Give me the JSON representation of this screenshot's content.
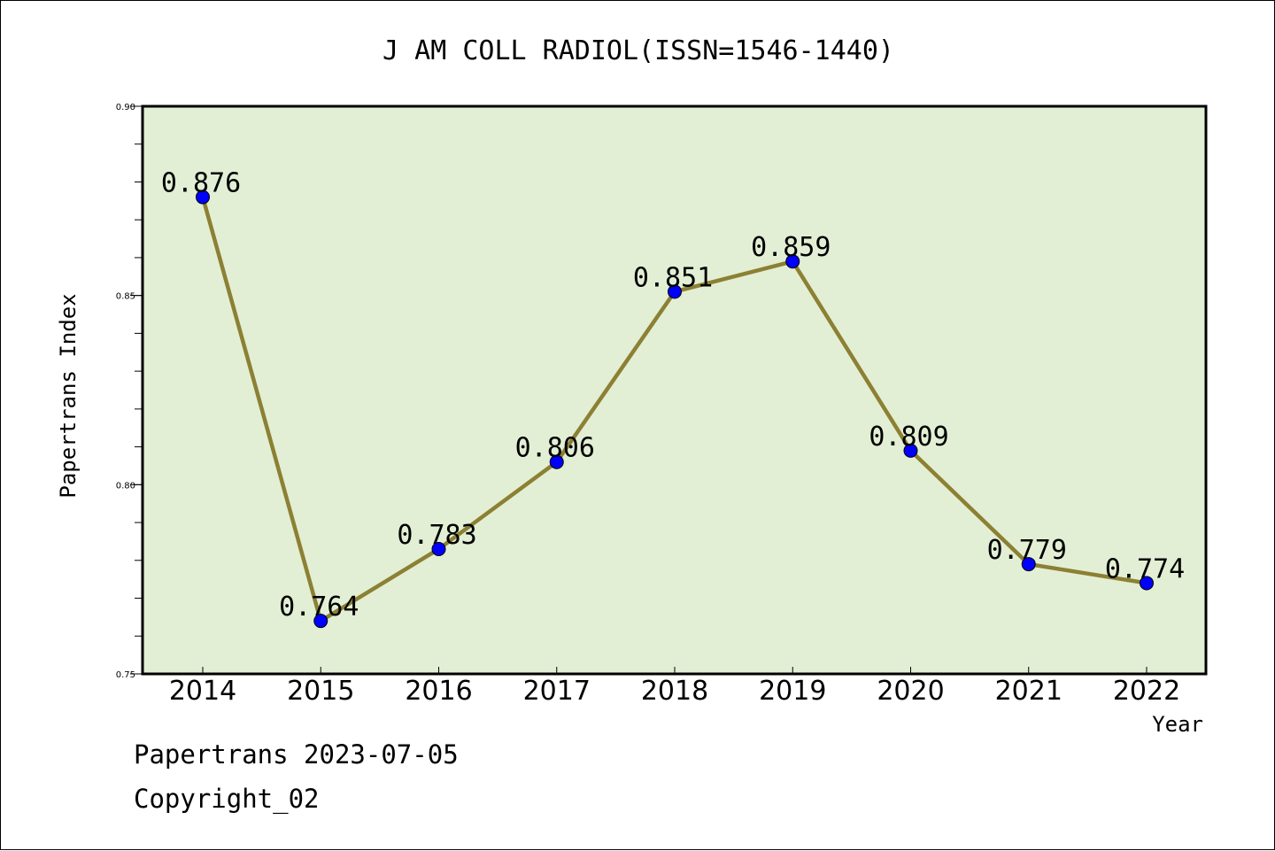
{
  "colors": {
    "plot_bg": "#e2efd5",
    "line": "#8c8033",
    "marker": "#0000ff",
    "axis": "#000000"
  },
  "chart_data": {
    "type": "line",
    "title": "J AM COLL RADIOL(ISSN=1546-1440)",
    "xlabel": "Year",
    "ylabel": "Papertrans Index",
    "ylim": [
      0.75,
      0.9
    ],
    "yticks": [
      0.75,
      0.8,
      0.85,
      0.9
    ],
    "ytick_labels": [
      "0.75",
      "0.80",
      "0.85",
      "0.90"
    ],
    "categories": [
      "2014",
      "2015",
      "2016",
      "2017",
      "2018",
      "2019",
      "2020",
      "2021",
      "2022"
    ],
    "series": [
      {
        "values": [
          0.876,
          0.764,
          0.783,
          0.806,
          0.851,
          0.859,
          0.809,
          0.779,
          0.774
        ],
        "labels": [
          "0.876",
          "0.764",
          "0.783",
          "0.806",
          "0.851",
          "0.859",
          "0.809",
          "0.779",
          "0.774"
        ]
      }
    ],
    "grid": false,
    "legend": "none"
  },
  "footer": {
    "line1": "Papertrans 2023-07-05",
    "line2": "Copyright_02"
  }
}
